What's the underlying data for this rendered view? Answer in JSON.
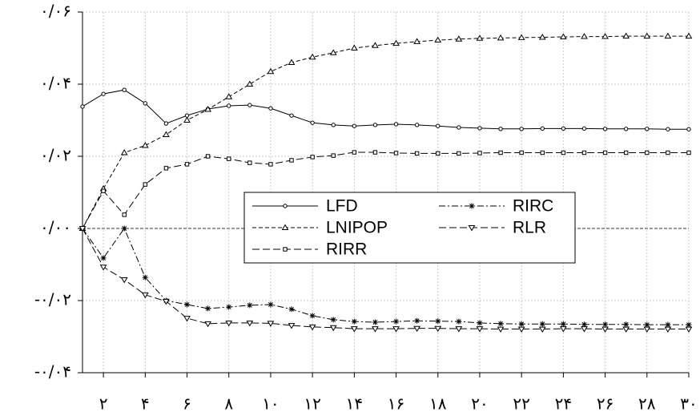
{
  "chart_data": {
    "type": "line",
    "x": [
      1,
      2,
      3,
      4,
      5,
      6,
      7,
      8,
      9,
      10,
      11,
      12,
      13,
      14,
      15,
      16,
      17,
      18,
      19,
      20,
      21,
      22,
      23,
      24,
      25,
      26,
      27,
      28,
      29,
      30
    ],
    "xlim": [
      1,
      30
    ],
    "xticks": [
      {
        "value": 2,
        "label": "۲"
      },
      {
        "value": 4,
        "label": "۴"
      },
      {
        "value": 6,
        "label": "۶"
      },
      {
        "value": 8,
        "label": "۸"
      },
      {
        "value": 10,
        "label": "۱۰"
      },
      {
        "value": 12,
        "label": "۱۲"
      },
      {
        "value": 14,
        "label": "۱۴"
      },
      {
        "value": 16,
        "label": "۱۶"
      },
      {
        "value": 18,
        "label": "۱۸"
      },
      {
        "value": 20,
        "label": "۲۰"
      },
      {
        "value": 22,
        "label": "۲۲"
      },
      {
        "value": 24,
        "label": "۲۴"
      },
      {
        "value": 26,
        "label": "۲۶"
      },
      {
        "value": 28,
        "label": "۲۸"
      },
      {
        "value": 30,
        "label": "۳۰"
      }
    ],
    "ylim": [
      -0.04,
      0.06
    ],
    "yticks": [
      {
        "value": -0.04,
        "label": "-۰/۰۴"
      },
      {
        "value": -0.02,
        "label": "-۰/۰۲"
      },
      {
        "value": 0,
        "label": "۰/۰۰"
      },
      {
        "value": 0.02,
        "label": "۰/۰۲"
      },
      {
        "value": 0.04,
        "label": "۰/۰۴"
      },
      {
        "value": 0.06,
        "label": "۰/۰۶"
      }
    ],
    "grid": true,
    "series": [
      {
        "name": "LFD",
        "color": "#000000",
        "marker": "circle",
        "linestyle": "solid",
        "values": [
          0.0338,
          0.0373,
          0.0384,
          0.0347,
          0.0291,
          0.0313,
          0.0331,
          0.034,
          0.0342,
          0.0333,
          0.0313,
          0.0293,
          0.0287,
          0.0284,
          0.0287,
          0.0289,
          0.0287,
          0.0284,
          0.028,
          0.0278,
          0.0276,
          0.0276,
          0.0277,
          0.0277,
          0.0277,
          0.0276,
          0.0276,
          0.0276,
          0.0275,
          0.0275
        ]
      },
      {
        "name": "LNIPOP",
        "color": "#000000",
        "marker": "triangle-up",
        "linestyle": "dashed",
        "values": [
          0,
          0.011,
          0.021,
          0.023,
          0.026,
          0.03,
          0.033,
          0.0365,
          0.04,
          0.0435,
          0.046,
          0.0475,
          0.0487,
          0.05,
          0.0507,
          0.0513,
          0.0518,
          0.0522,
          0.0525,
          0.0527,
          0.0528,
          0.0529,
          0.053,
          0.0531,
          0.0532,
          0.0532,
          0.0533,
          0.0533,
          0.0533,
          0.0533
        ]
      },
      {
        "name": "RIRR",
        "color": "#000000",
        "marker": "square",
        "linestyle": "longdash",
        "values": [
          0,
          0.0104,
          0.0038,
          0.0122,
          0.0167,
          0.0178,
          0.02,
          0.0193,
          0.0182,
          0.0178,
          0.0189,
          0.0198,
          0.0202,
          0.0211,
          0.0211,
          0.0209,
          0.0208,
          0.0208,
          0.0208,
          0.0209,
          0.021,
          0.021,
          0.021,
          0.021,
          0.021,
          0.021,
          0.021,
          0.021,
          0.021,
          0.021
        ]
      },
      {
        "name": "RIRC",
        "color": "#000000",
        "marker": "star",
        "linestyle": "dashdot",
        "values": [
          0,
          -0.0082,
          0,
          -0.0136,
          -0.02,
          -0.0211,
          -0.0222,
          -0.0218,
          -0.0213,
          -0.0211,
          -0.0224,
          -0.0242,
          -0.0253,
          -0.0258,
          -0.026,
          -0.0258,
          -0.0256,
          -0.0257,
          -0.0258,
          -0.0262,
          -0.0264,
          -0.0265,
          -0.0265,
          -0.0265,
          -0.0266,
          -0.0266,
          -0.0266,
          -0.0267,
          -0.0267,
          -0.0267
        ]
      },
      {
        "name": "RLR",
        "color": "#000000",
        "marker": "triangle-down",
        "linestyle": "longdash",
        "values": [
          0,
          -0.0107,
          -0.0142,
          -0.0184,
          -0.0202,
          -0.0249,
          -0.0264,
          -0.0262,
          -0.0262,
          -0.0263,
          -0.0269,
          -0.0273,
          -0.0275,
          -0.0278,
          -0.0278,
          -0.0278,
          -0.0277,
          -0.0277,
          -0.0278,
          -0.0278,
          -0.0279,
          -0.0279,
          -0.0279,
          -0.0278,
          -0.0278,
          -0.0279,
          -0.0279,
          -0.0279,
          -0.0279,
          -0.0279
        ]
      }
    ]
  }
}
